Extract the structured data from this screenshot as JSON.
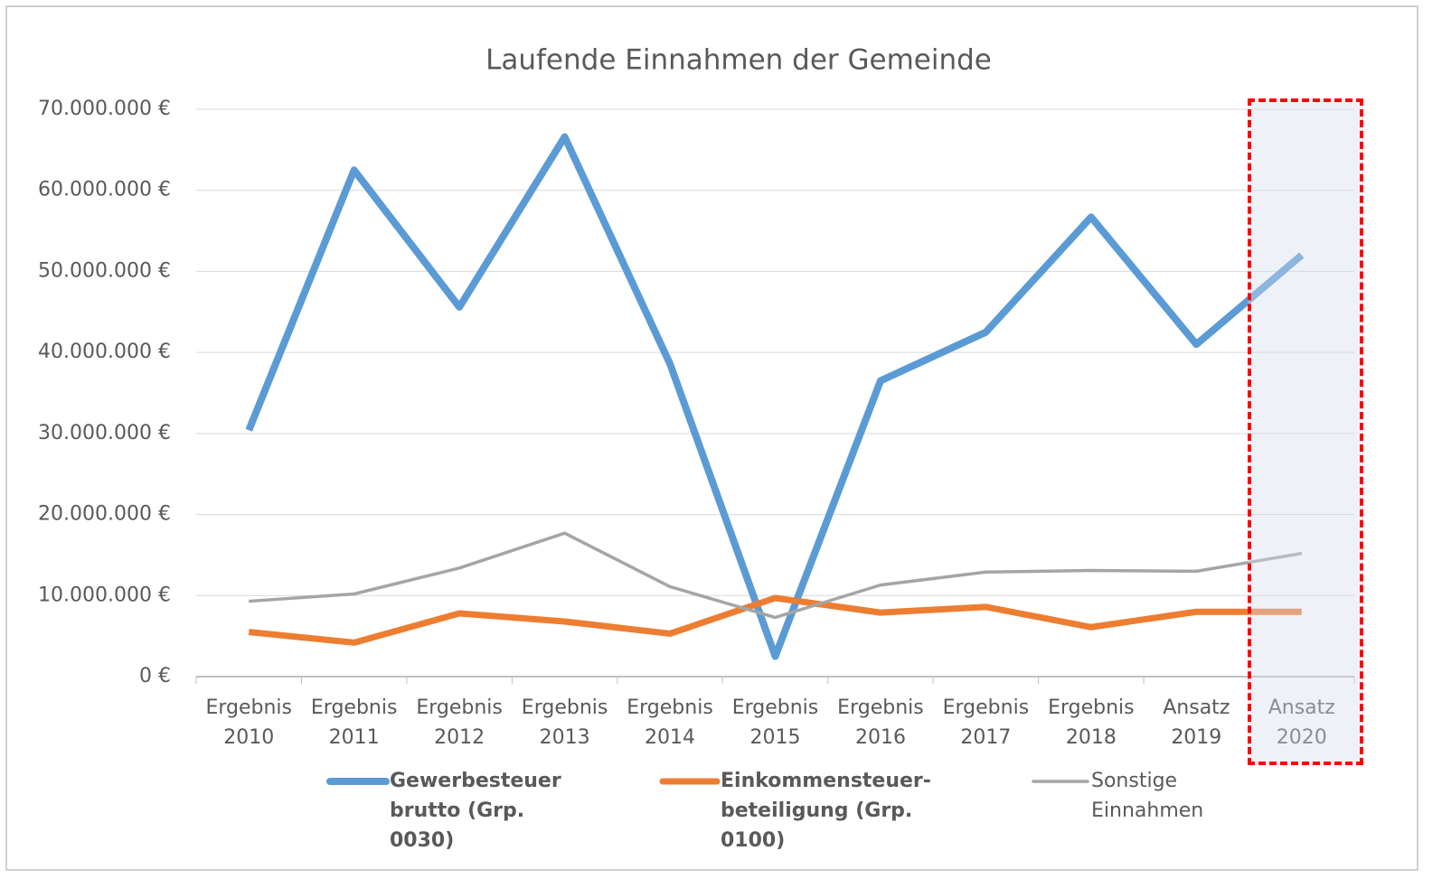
{
  "chart_data": {
    "type": "line",
    "title": "Laufende Einnahmen der Gemeinde",
    "categories": [
      "Ergebnis 2010",
      "Ergebnis 2011",
      "Ergebnis 2012",
      "Ergebnis 2013",
      "Ergebnis 2014",
      "Ergebnis 2015",
      "Ergebnis 2016",
      "Ergebnis 2017",
      "Ergebnis 2018",
      "Ansatz 2019",
      "Ansatz 2020"
    ],
    "series": [
      {
        "name": "Gewerbesteuer brutto (Grp. 0030)",
        "color": "#5b9bd5",
        "values": [
          30400000,
          62500000,
          45600000,
          66600000,
          38600000,
          2500000,
          36500000,
          42500000,
          56700000,
          41000000,
          52000000
        ]
      },
      {
        "name": "Einkommensteuer-beteiligung (Grp. 0100)",
        "color": "#ed7d31",
        "values": [
          5500000,
          4200000,
          7800000,
          6800000,
          5300000,
          9700000,
          7900000,
          8600000,
          6100000,
          8000000,
          8000000
        ]
      },
      {
        "name": "Sonstige Einnahmen",
        "color": "#a5a5a5",
        "values": [
          9300000,
          10200000,
          13400000,
          17700000,
          11100000,
          7300000,
          11300000,
          12900000,
          13100000,
          13000000,
          15200000
        ]
      }
    ],
    "ylim": [
      0,
      70000000
    ],
    "yticks": [
      {
        "value": 0,
        "label": "0 €"
      },
      {
        "value": 10000000,
        "label": "10.000.000 €"
      },
      {
        "value": 20000000,
        "label": "20.000.000 €"
      },
      {
        "value": 30000000,
        "label": "30.000.000 €"
      },
      {
        "value": 40000000,
        "label": "40.000.000 €"
      },
      {
        "value": 50000000,
        "label": "50.000.000 €"
      },
      {
        "value": 60000000,
        "label": "60.000.000 €"
      },
      {
        "value": 70000000,
        "label": "70.000.000 €"
      }
    ],
    "grid": true
  }
}
